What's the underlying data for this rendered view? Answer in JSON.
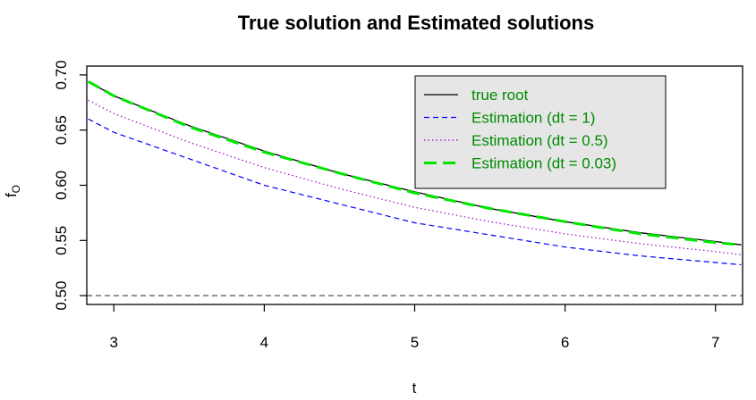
{
  "chart_data": {
    "type": "line",
    "title": "True solution and Estimated solutions",
    "xlabel": "t",
    "ylabel": "f",
    "ylabel_subscript": "O",
    "xlim": [
      2.82,
      7.18
    ],
    "ylim": [
      0.492,
      0.708
    ],
    "x_ticks": [
      3,
      4,
      5,
      6,
      7
    ],
    "x_tick_labels": [
      "3",
      "4",
      "5",
      "6",
      "7"
    ],
    "y_ticks": [
      0.5,
      0.55,
      0.6,
      0.65,
      0.7
    ],
    "y_tick_labels": [
      "0.50",
      "0.55",
      "0.60",
      "0.65",
      "0.70"
    ],
    "grid": false,
    "legend_position": "top-right",
    "reference_line": {
      "y": 0.5,
      "style": "dashed",
      "color": "#555555"
    },
    "x": [
      2.83,
      3.0,
      3.5,
      4.0,
      4.5,
      5.0,
      5.5,
      6.0,
      6.5,
      7.0,
      7.17
    ],
    "series": [
      {
        "name": "true root",
        "color": "#000000",
        "dash": "solid",
        "values": [
          0.694,
          0.681,
          0.654,
          0.631,
          0.611,
          0.594,
          0.579,
          0.567,
          0.557,
          0.549,
          0.546
        ]
      },
      {
        "name": "Estimation (dt = 1)",
        "color": "#0000ff",
        "dash": "dashed",
        "values": [
          0.66,
          0.648,
          0.624,
          0.6,
          0.583,
          0.566,
          0.555,
          0.544,
          0.536,
          0.53,
          0.528
        ]
      },
      {
        "name": "Estimation (dt = 0.5)",
        "color": "#9b00c8",
        "dash": "dotted",
        "values": [
          0.677,
          0.665,
          0.639,
          0.616,
          0.597,
          0.58,
          0.567,
          0.556,
          0.547,
          0.54,
          0.537
        ]
      },
      {
        "name": "Estimation (dt = 0.03)",
        "color": "#00e600",
        "dash": "longdash",
        "values": [
          0.694,
          0.681,
          0.653,
          0.63,
          0.611,
          0.593,
          0.579,
          0.567,
          0.556,
          0.548,
          0.546
        ]
      }
    ]
  },
  "colors": {
    "legend_text": "#008b00",
    "legend_background": "#e6e6e6",
    "frame": "#000000",
    "background": "#ffffff"
  }
}
